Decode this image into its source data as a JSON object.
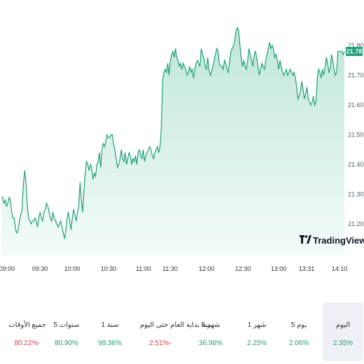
{
  "colors": {
    "line": "#1f9e78",
    "area_top": "#bfe7d9",
    "area_bottom": "#f3fbf8",
    "positive": "#1f9e78",
    "negative": "#e0414f",
    "tag_bg": "#1f9e78"
  },
  "brand": {
    "logo_text": "TradingView"
  },
  "price_tag": "21.78",
  "chart_data": {
    "type": "area",
    "title": "",
    "ylim": [
      21.18,
      21.81
    ],
    "yticks": [
      "21.80",
      "21.70",
      "21.60",
      "21.50",
      "21.40",
      "21.30",
      "21.20"
    ],
    "xticks": [
      "09:00",
      "09:30",
      "10:00",
      "10:30",
      "11:00",
      "11:30",
      "12:00",
      "12:30",
      "13:00",
      "13:31",
      "14:10"
    ],
    "grid": false,
    "last_value": 21.78,
    "y": [
      21.29,
      21.29,
      21.27,
      21.28,
      21.26,
      21.27,
      21.29,
      21.28,
      21.24,
      21.22,
      21.22,
      21.18,
      21.17,
      21.18,
      21.21,
      21.23,
      21.25,
      21.33,
      21.38,
      21.34,
      21.27,
      21.22,
      21.21,
      21.2,
      21.21,
      21.21,
      21.22,
      21.21,
      21.19,
      21.22,
      21.24,
      21.22,
      21.21,
      21.24,
      21.25,
      21.27,
      21.26,
      21.24,
      21.22,
      21.21,
      21.24,
      21.22,
      21.21,
      21.2,
      21.19,
      21.2,
      21.21,
      21.19,
      21.17,
      21.15,
      21.18,
      21.22,
      21.24,
      21.21,
      21.18,
      21.22,
      21.25,
      21.23,
      21.21,
      21.24,
      21.26,
      21.34,
      21.28,
      21.24,
      21.31,
      21.37,
      21.41,
      21.4,
      21.38,
      21.4,
      21.39,
      21.35,
      21.37,
      21.36,
      21.4,
      21.41,
      21.44,
      21.39,
      21.45,
      21.47,
      21.46,
      21.48,
      21.5,
      21.49,
      21.49,
      21.5,
      21.5,
      21.47,
      21.45,
      21.42,
      21.39,
      21.4,
      21.42,
      21.45,
      21.42,
      21.41,
      21.44,
      21.4,
      21.42,
      21.44,
      21.43,
      21.4,
      21.42,
      21.41,
      21.43,
      21.4,
      21.44,
      21.45,
      21.43,
      21.42,
      21.45,
      21.41,
      21.43,
      21.44,
      21.45,
      21.46,
      21.45,
      21.43,
      21.42,
      21.44,
      21.45,
      21.46,
      21.44,
      21.46,
      21.52,
      21.68,
      21.71,
      21.72,
      21.71,
      21.74,
      21.7,
      21.75,
      21.77,
      21.78,
      21.76,
      21.79,
      21.76,
      21.75,
      21.73,
      21.74,
      21.72,
      21.74,
      21.73,
      21.72,
      21.7,
      21.71,
      21.73,
      21.71,
      21.72,
      21.69,
      21.72,
      21.74,
      21.75,
      21.74,
      21.73,
      21.79,
      21.77,
      21.76,
      21.73,
      21.72,
      21.76,
      21.72,
      21.7,
      21.71,
      21.73,
      21.75,
      21.77,
      21.79,
      21.78,
      21.74,
      21.73,
      21.73,
      21.72,
      21.75,
      21.74,
      21.72,
      21.71,
      21.75,
      21.78,
      21.79,
      21.8,
      21.82,
      21.85,
      21.86,
      21.85,
      21.8,
      21.76,
      21.73,
      21.75,
      21.73,
      21.72,
      21.75,
      21.79,
      21.77,
      21.75,
      21.73,
      21.77,
      21.78,
      21.76,
      21.73,
      21.7,
      21.72,
      21.74,
      21.73,
      21.72,
      21.75,
      21.77,
      21.79,
      21.81,
      21.79,
      21.8,
      21.79,
      21.76,
      21.77,
      21.75,
      21.72,
      21.75,
      21.73,
      21.71,
      21.7,
      21.71,
      21.72,
      21.7,
      21.71,
      21.72,
      21.71,
      21.7,
      21.71,
      21.69,
      21.66,
      21.62,
      21.63,
      21.65,
      21.68,
      21.65,
      21.62,
      21.64,
      21.66,
      21.62,
      21.61,
      21.6,
      21.61,
      21.63,
      21.6,
      21.61,
      21.69,
      21.72,
      21.71,
      21.69,
      21.72,
      21.7,
      21.73,
      21.76,
      21.74,
      21.71,
      21.72,
      21.77,
      21.75,
      21.72,
      21.7,
      21.71,
      21.78,
      21.78,
      21.78,
      21.78,
      21.77,
      21.78
    ]
  },
  "periods": [
    {
      "label": "اليوم",
      "value": "2.35%",
      "sign": "positive",
      "active": true
    },
    {
      "label": "5 يوم",
      "value": "2.06%",
      "sign": "positive",
      "active": false
    },
    {
      "label": "1 شهر",
      "value": "2.25%",
      "sign": "positive",
      "active": false
    },
    {
      "label": "6 شهر",
      "value": "36.98%",
      "sign": "positive",
      "active": false
    },
    {
      "label": "منذ بداية العام حتى اليوم",
      "value": "2.51%-",
      "sign": "negative",
      "active": false
    },
    {
      "label": "1 سنة",
      "value": "98.36%",
      "sign": "positive",
      "active": false
    },
    {
      "label": "5 سنوات",
      "value": "80.90%",
      "sign": "positive",
      "active": false
    },
    {
      "label": "جميع الأوقات",
      "value": "80.22%-",
      "sign": "negative",
      "active": false
    }
  ]
}
